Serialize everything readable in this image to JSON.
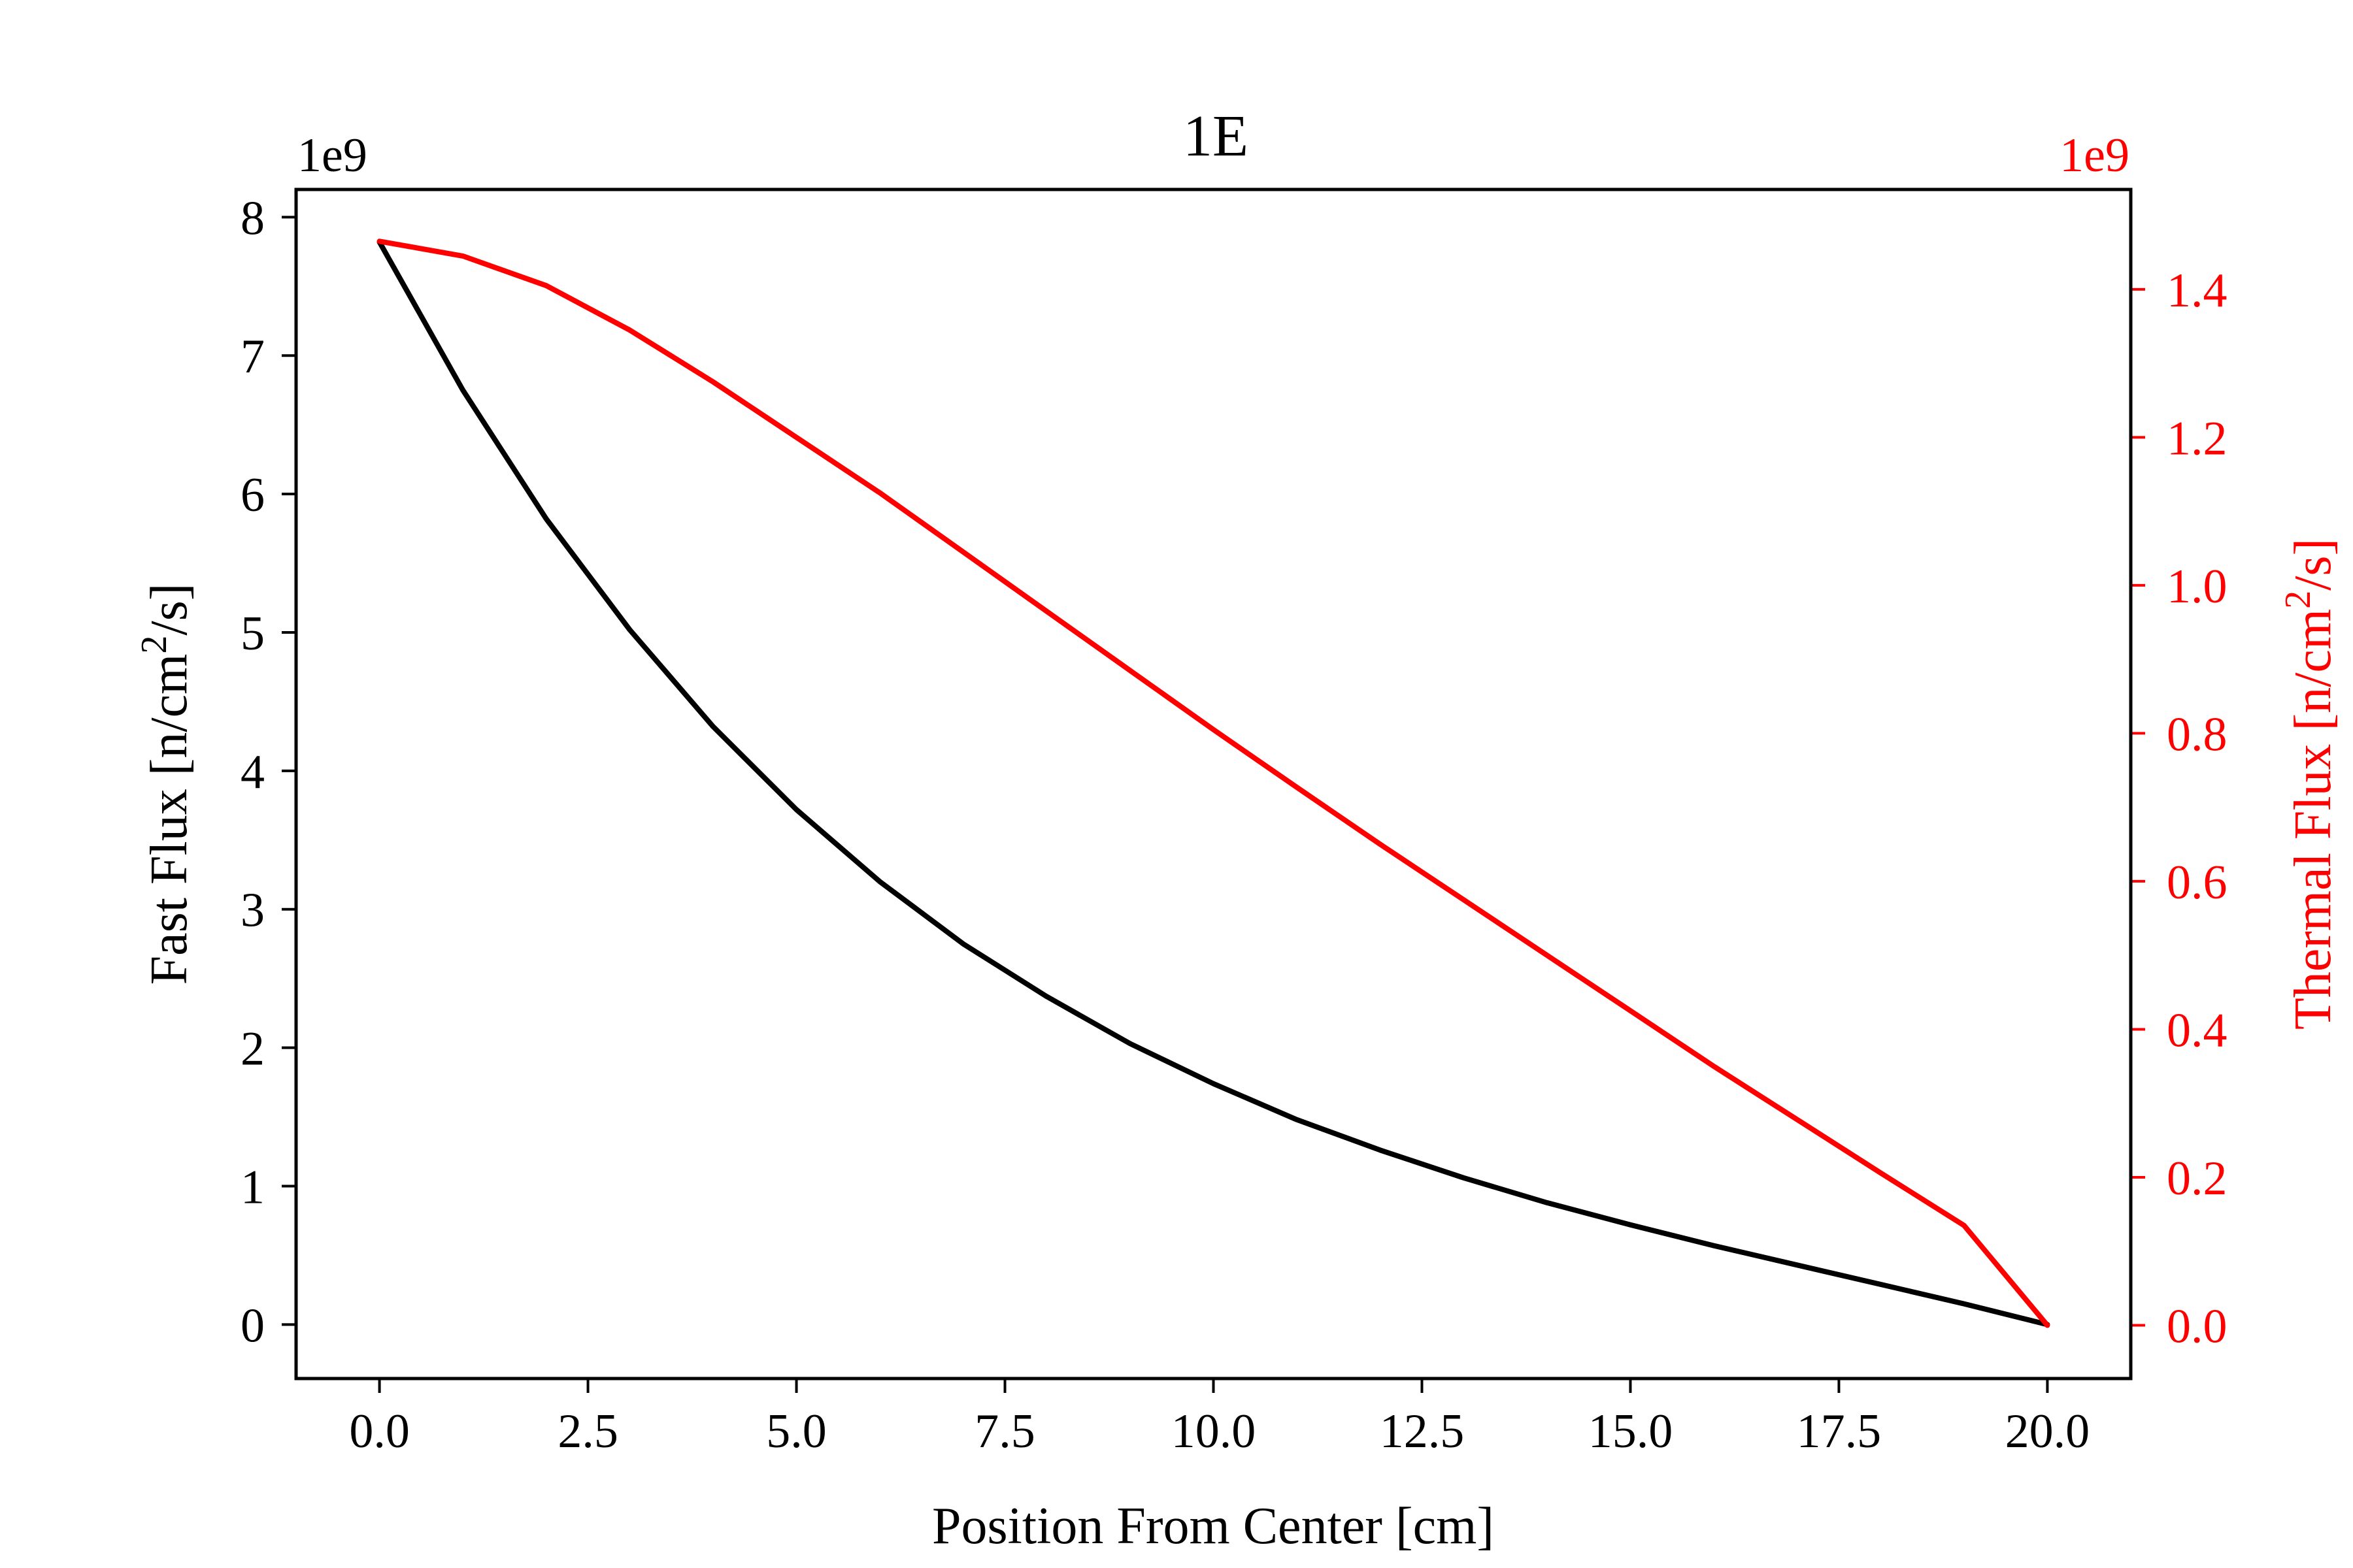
{
  "chart_data": {
    "type": "line",
    "title": "1E",
    "xlabel": "Position From Center [cm]",
    "ylabel_left_base": "Fast Flux [n/cm",
    "ylabel_left_sup": "2",
    "ylabel_left_tail": "/s]",
    "ylabel_right_base": "Thermal Flux [n/cm",
    "ylabel_right_sup": "2",
    "ylabel_right_tail": "/s]",
    "left_offset_label": "1e9",
    "right_offset_label": "1e9",
    "xlim": [
      -1.0,
      21.0
    ],
    "ylim_left": [
      -0.39,
      8.2
    ],
    "ylim_right": [
      -0.072,
      1.535
    ],
    "xticks": [
      0.0,
      2.5,
      5.0,
      7.5,
      10.0,
      12.5,
      15.0,
      17.5,
      20.0
    ],
    "xtick_labels": [
      "0.0",
      "2.5",
      "5.0",
      "7.5",
      "10.0",
      "12.5",
      "15.0",
      "17.5",
      "20.0"
    ],
    "yticks_left": [
      0,
      1,
      2,
      3,
      4,
      5,
      6,
      7,
      8
    ],
    "ytick_labels_left": [
      "0",
      "1",
      "2",
      "3",
      "4",
      "5",
      "6",
      "7",
      "8"
    ],
    "yticks_right": [
      0.0,
      0.2,
      0.4,
      0.6,
      0.8,
      1.0,
      1.2,
      1.4
    ],
    "ytick_labels_right": [
      "0.0",
      "0.2",
      "0.4",
      "0.6",
      "0.8",
      "1.0",
      "1.2",
      "1.4"
    ],
    "x": [
      0,
      1,
      2,
      3,
      4,
      5,
      6,
      7,
      8,
      9,
      10,
      11,
      12,
      13,
      14,
      15,
      16,
      17,
      18,
      19,
      20
    ],
    "series": [
      {
        "name": "Fast Flux",
        "axis": "left",
        "color": "#000000",
        "values": [
          7.82,
          6.75,
          5.82,
          5.02,
          4.32,
          3.72,
          3.2,
          2.75,
          2.37,
          2.03,
          1.74,
          1.48,
          1.26,
          1.06,
          0.88,
          0.72,
          0.57,
          0.43,
          0.29,
          0.15,
          0.0
        ]
      },
      {
        "name": "Thermal Flux",
        "axis": "right",
        "color": "#ff0000",
        "values": [
          1.465,
          1.445,
          1.405,
          1.345,
          1.275,
          1.2,
          1.125,
          1.045,
          0.965,
          0.885,
          0.805,
          0.727,
          0.65,
          0.575,
          0.5,
          0.425,
          0.35,
          0.278,
          0.206,
          0.135,
          0.0
        ]
      }
    ]
  }
}
